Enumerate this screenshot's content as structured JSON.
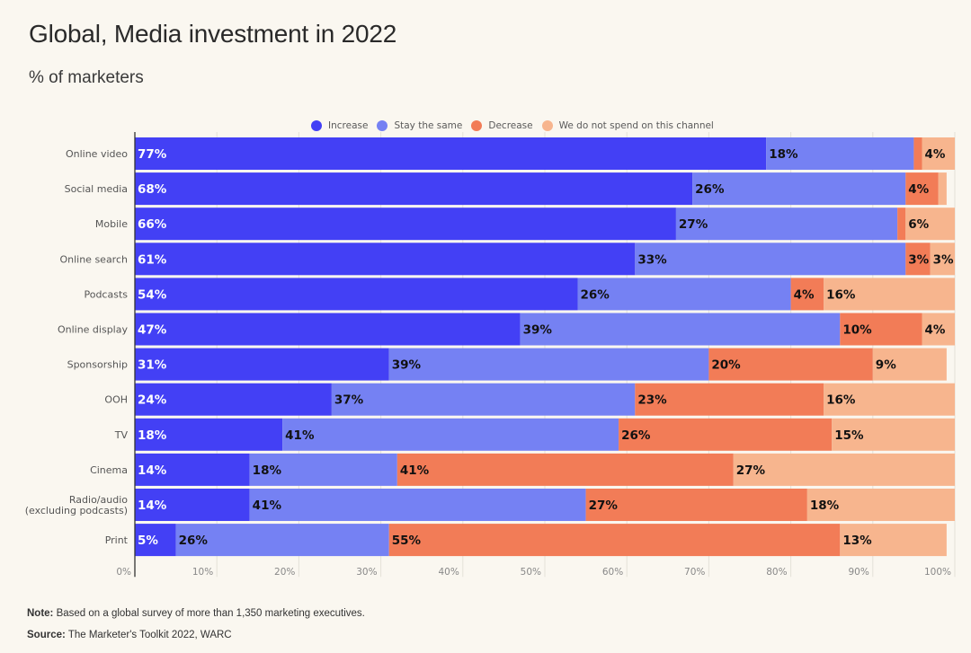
{
  "header": {
    "title": "Global, Media investment in 2022",
    "subtitle": "% of marketers"
  },
  "footer": {
    "note_label": "Note:",
    "note_text": " Based on a global survey of more than 1,350 marketing executives.",
    "source_label": "Source:",
    "source_text": " The Marketer's Toolkit 2022, WARC"
  },
  "chart_data": {
    "type": "bar",
    "orientation": "horizontal",
    "stacked": true,
    "title": "Global, Media investment in 2022",
    "subtitle": "% of marketers",
    "xlabel": "",
    "ylabel": "",
    "xlim": [
      0,
      100
    ],
    "x_ticks": [
      "0%",
      "10%",
      "20%",
      "30%",
      "40%",
      "50%",
      "60%",
      "70%",
      "80%",
      "90%",
      "100%"
    ],
    "grid": true,
    "legend_position": "top",
    "categories": [
      "Online video",
      "Social media",
      "Mobile",
      "Online search",
      "Podcasts",
      "Online display",
      "Sponsorship",
      "OOH",
      "TV",
      "Cinema",
      "Radio/audio\n(excluding podcasts)",
      "Print"
    ],
    "series": [
      {
        "name": "Increase",
        "color": "#4340f5",
        "label_color": "#ffffff",
        "values": [
          77,
          68,
          66,
          61,
          54,
          47,
          31,
          24,
          18,
          14,
          14,
          5
        ],
        "labels": [
          "77%",
          "68%",
          "66%",
          "61%",
          "54%",
          "47%",
          "31%",
          "24%",
          "18%",
          "14%",
          "14%",
          "5%"
        ]
      },
      {
        "name": "Stay the same",
        "color": "#7581f3",
        "label_color": "#111111",
        "values": [
          18,
          26,
          27,
          33,
          26,
          39,
          39,
          37,
          41,
          18,
          41,
          26
        ],
        "labels": [
          "18%",
          "26%",
          "27%",
          "33%",
          "26%",
          "39%",
          "39%",
          "37%",
          "41%",
          "18%",
          "41%",
          "26%"
        ]
      },
      {
        "name": "Decrease",
        "color": "#f27c57",
        "label_color": "#111111",
        "values": [
          1,
          4,
          1,
          3,
          4,
          10,
          20,
          23,
          26,
          41,
          27,
          55
        ],
        "labels": [
          null,
          "4%",
          null,
          "3%",
          "4%",
          "10%",
          "20%",
          "23%",
          "26%",
          "41%",
          "27%",
          "55%"
        ]
      },
      {
        "name": "We do not spend on this channel",
        "color": "#f7b58e",
        "label_color": "#111111",
        "values": [
          4,
          1,
          6,
          3,
          16,
          4,
          9,
          16,
          15,
          27,
          18,
          13
        ],
        "labels": [
          "4%",
          null,
          "6%",
          "3%",
          "16%",
          "4%",
          "9%",
          "16%",
          "15%",
          "27%",
          "18%",
          "13%"
        ]
      }
    ]
  }
}
